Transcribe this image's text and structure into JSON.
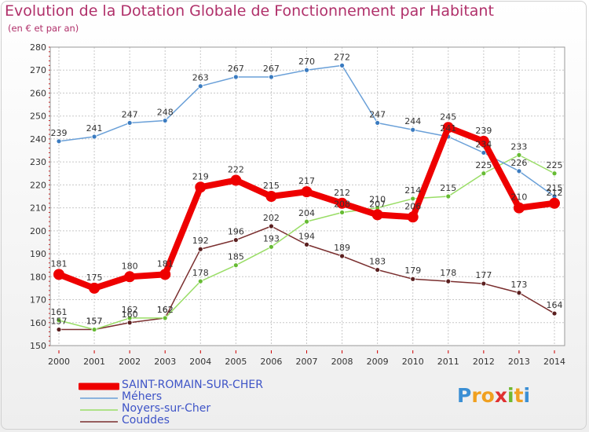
{
  "header": {
    "title": "Evolution de la Dotation Globale de Fonctionnement par Habitant",
    "subtitle": "(en € et par an)"
  },
  "logo": {
    "text": "Proxiti",
    "letters": [
      "P",
      "r",
      "o",
      "x",
      "i",
      "t",
      "i"
    ]
  },
  "colors": {
    "title": "#b0306a",
    "legend_text": "#3e54c7",
    "grid": "#c8c8c8",
    "axis_tick": "#cc0000",
    "logo_letters": [
      "#3b8fd4",
      "#f0a020",
      "#f0a020",
      "#e03030",
      "#70b830",
      "#f0a020",
      "#3b8fd4"
    ]
  },
  "chart_data": {
    "type": "line",
    "title": "Evolution de la Dotation Globale de Fonctionnement par Habitant",
    "subtitle": "(en € et par an)",
    "xlabel": "",
    "ylabel": "",
    "ylim": [
      150,
      280
    ],
    "y_ticks": [
      150,
      160,
      170,
      180,
      190,
      200,
      210,
      220,
      230,
      240,
      250,
      260,
      270,
      280
    ],
    "grid": true,
    "legend_position": "bottom-left",
    "x": [
      "2000",
      "2001",
      "2002",
      "2003",
      "2004",
      "2005",
      "2006",
      "2007",
      "2008",
      "2009",
      "2010",
      "2011",
      "2012",
      "2013",
      "2014"
    ],
    "series": [
      {
        "name": "SAINT-ROMAIN-SUR-CHER",
        "color": "#ee0000",
        "marker": "#ee0000",
        "label_color": "#333333",
        "values": [
          181,
          175,
          180,
          181,
          219,
          222,
          215,
          217,
          212,
          207,
          206,
          245,
          239,
          210,
          212
        ]
      },
      {
        "name": "Méhers",
        "color": "#6aa0d8",
        "marker": "#3a7bc0",
        "label_color": "#333333",
        "values": [
          239,
          241,
          247,
          248,
          263,
          267,
          267,
          270,
          272,
          247,
          244,
          241,
          234,
          226,
          215
        ]
      },
      {
        "name": "Noyers-sur-Cher",
        "color": "#99dd66",
        "marker": "#66bb33",
        "label_color": "#333333",
        "values": [
          161,
          157,
          162,
          162,
          178,
          185,
          193,
          204,
          208,
          210,
          214,
          215,
          225,
          233,
          225
        ]
      },
      {
        "name": "Couddes",
        "color": "#7a2f2f",
        "marker": "#5a1f1f",
        "label_color": "#333333",
        "values": [
          157,
          157,
          160,
          162,
          192,
          196,
          202,
          194,
          189,
          183,
          179,
          178,
          177,
          173,
          164
        ]
      }
    ]
  }
}
